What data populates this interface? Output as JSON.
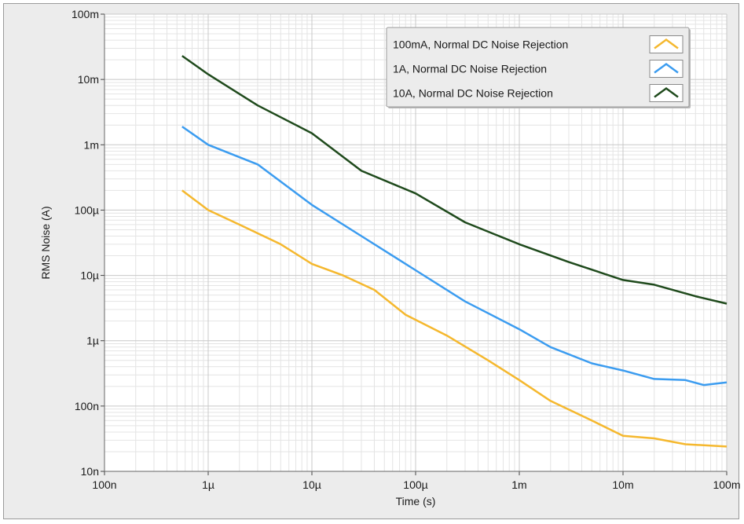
{
  "chart_data": {
    "type": "line",
    "xlabel": "Time (s)",
    "ylabel": "RMS Noise (A)",
    "x_scale": "log",
    "y_scale": "log",
    "xlim": [
      1e-07,
      0.1
    ],
    "ylim": [
      1e-08,
      0.1
    ],
    "x_ticks": [
      {
        "value": 1e-07,
        "label": "100n"
      },
      {
        "value": 1e-06,
        "label": "1µ"
      },
      {
        "value": 1e-05,
        "label": "10µ"
      },
      {
        "value": 0.0001,
        "label": "100µ"
      },
      {
        "value": 0.001,
        "label": "1m"
      },
      {
        "value": 0.01,
        "label": "10m"
      },
      {
        "value": 0.1,
        "label": "100m"
      }
    ],
    "y_ticks": [
      {
        "value": 0.1,
        "label": "100m"
      },
      {
        "value": 0.01,
        "label": "10m"
      },
      {
        "value": 0.001,
        "label": "1m"
      },
      {
        "value": 0.0001,
        "label": "100µ"
      },
      {
        "value": 1e-05,
        "label": "10µ"
      },
      {
        "value": 1e-06,
        "label": "1µ"
      },
      {
        "value": 1e-07,
        "label": "100n"
      },
      {
        "value": 1e-08,
        "label": "10n"
      }
    ],
    "grid": true,
    "legend_position": "top-right",
    "series": [
      {
        "name": "100mA, Normal DC Noise Rejection",
        "color": "#f5b82e",
        "points": [
          [
            5.6e-07,
            0.0002
          ],
          [
            1e-06,
            0.0001
          ],
          [
            2e-06,
            6e-05
          ],
          [
            5e-06,
            3e-05
          ],
          [
            1e-05,
            1.5e-05
          ],
          [
            2e-05,
            1e-05
          ],
          [
            4e-05,
            6e-06
          ],
          [
            8e-05,
            2.5e-06
          ],
          [
            0.0002,
            1.2e-06
          ],
          [
            0.0005,
            5e-07
          ],
          [
            0.001,
            2.5e-07
          ],
          [
            0.002,
            1.2e-07
          ],
          [
            0.005,
            6e-08
          ],
          [
            0.01,
            3.5e-08
          ],
          [
            0.02,
            3.2e-08
          ],
          [
            0.04,
            2.6e-08
          ],
          [
            0.1,
            2.4e-08
          ]
        ]
      },
      {
        "name": "1A, Normal DC Noise Rejection",
        "color": "#3b9cf0",
        "points": [
          [
            5.6e-07,
            0.0019
          ],
          [
            1e-06,
            0.001
          ],
          [
            3e-06,
            0.0005
          ],
          [
            1e-05,
            0.00012
          ],
          [
            3e-05,
            4e-05
          ],
          [
            0.0001,
            1.2e-05
          ],
          [
            0.0003,
            4e-06
          ],
          [
            0.001,
            1.5e-06
          ],
          [
            0.002,
            8e-07
          ],
          [
            0.005,
            4.5e-07
          ],
          [
            0.01,
            3.5e-07
          ],
          [
            0.02,
            2.6e-07
          ],
          [
            0.04,
            2.5e-07
          ],
          [
            0.06,
            2.1e-07
          ],
          [
            0.1,
            2.3e-07
          ]
        ]
      },
      {
        "name": "10A, Normal DC Noise Rejection",
        "color": "#1f4a1c",
        "points": [
          [
            5.6e-07,
            0.023
          ],
          [
            1e-06,
            0.012
          ],
          [
            3e-06,
            0.004
          ],
          [
            1e-05,
            0.0015
          ],
          [
            3e-05,
            0.0004
          ],
          [
            0.0001,
            0.00018
          ],
          [
            0.0003,
            6.5e-05
          ],
          [
            0.001,
            3e-05
          ],
          [
            0.003,
            1.6e-05
          ],
          [
            0.01,
            8.5e-06
          ],
          [
            0.02,
            7.2e-06
          ],
          [
            0.05,
            4.8e-06
          ],
          [
            0.1,
            3.7e-06
          ]
        ]
      }
    ]
  }
}
